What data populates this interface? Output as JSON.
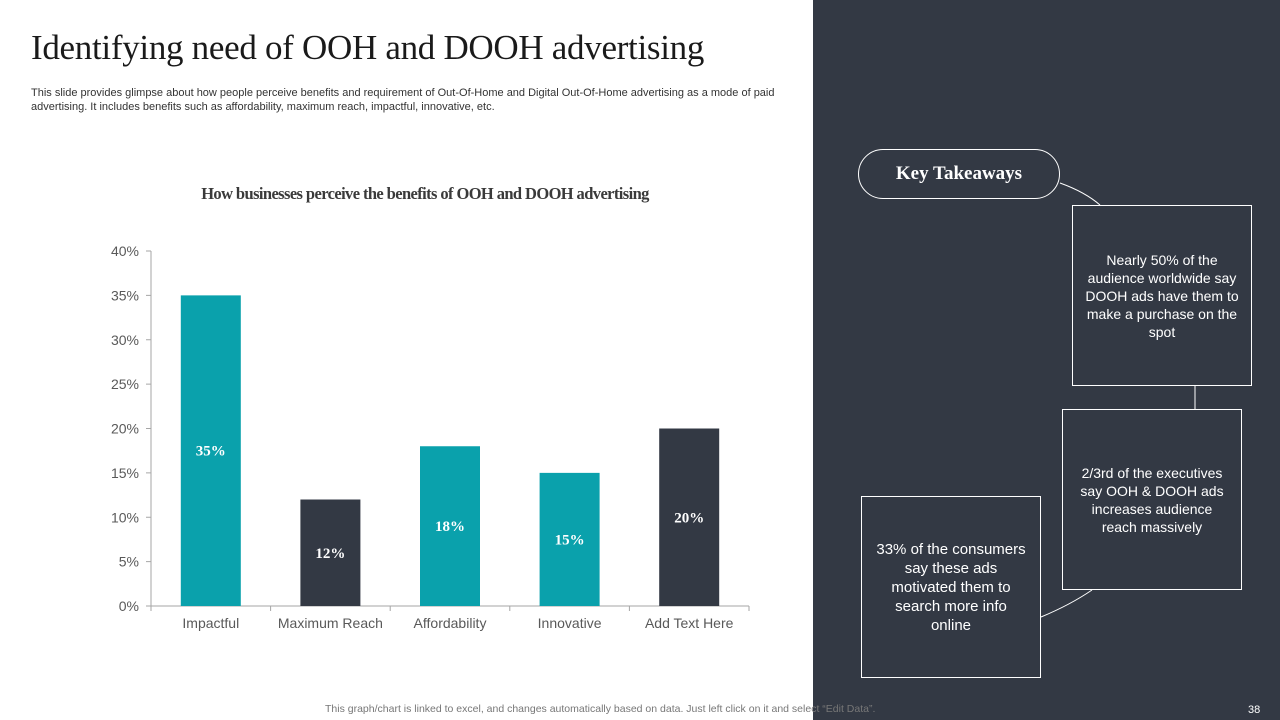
{
  "slide": {
    "title": "Identifying need of OOH and DOOH advertising",
    "subtitle": "This slide provides glimpse about how people perceive benefits and requirement of Out-Of-Home and Digital Out-Of-Home advertising as a mode of paid advertising. It includes benefits such as affordability, maximum reach, impactful, innovative, etc.",
    "footer": "This graph/chart is linked to excel,  and changes automatically based on data. Just left click on it and select “Edit Data”.",
    "page_number": "38"
  },
  "chart_data": {
    "type": "bar",
    "title": "How businesses perceive the benefits of OOH and DOOH advertising",
    "categories": [
      "Impactful",
      "Maximum Reach",
      "Affordability",
      "Innovative",
      "Add Text Here"
    ],
    "values": [
      35,
      12,
      18,
      15,
      20
    ],
    "data_labels": [
      "35%",
      "12%",
      "18%",
      "15%",
      "20%"
    ],
    "bar_colors": [
      "#0aa1ac",
      "#333944",
      "#0aa1ac",
      "#0aa1ac",
      "#333944"
    ],
    "ylim": [
      0,
      40
    ],
    "yticks": [
      0,
      5,
      10,
      15,
      20,
      25,
      30,
      35,
      40
    ],
    "ytick_labels": [
      "0%",
      "5%",
      "10%",
      "15%",
      "20%",
      "25%",
      "30%",
      "35%",
      "40%"
    ],
    "xlabel": "",
    "ylabel": "",
    "grid": false,
    "legend": "none"
  },
  "takeaways": {
    "title": "Key Takeaways",
    "items": [
      "Nearly 50% of the audience worldwide say DOOH ads have them to make a purchase on the spot",
      "2/3rd of the executives say OOH & DOOH ads increases audience reach massively",
      "33% of the consumers say these ads motivated them to search more info online"
    ]
  },
  "colors": {
    "accent_teal": "#0aa1ac",
    "dark_slate": "#333944",
    "panel_background": "#333944"
  }
}
